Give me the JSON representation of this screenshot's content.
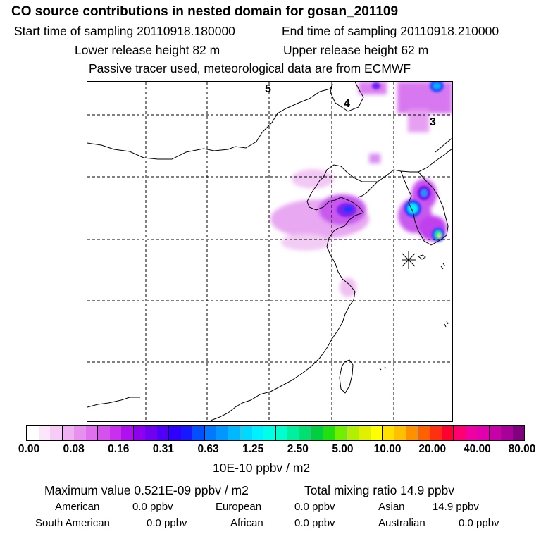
{
  "header": {
    "title": "CO  source contributions in nested domain for gosan_201109",
    "start_label": "Start time of sampling 20110918.180000",
    "end_label": "End time of sampling 20110918.210000",
    "lower_label": "Lower release height   82 m",
    "upper_label": "Upper release height   62 m",
    "note": "Passive tracer used, meteorological data are from ECMWF"
  },
  "map": {
    "region_labels": [
      "5",
      "4",
      "3"
    ],
    "receptor_marker": "gosan receptor star"
  },
  "colorbar": {
    "ticks": [
      "0.00",
      "0.08",
      "0.16",
      "0.31",
      "0.63",
      "1.25",
      "2.50",
      "5.00",
      "10.00",
      "20.00",
      "40.00",
      "80.00"
    ],
    "unit": "10E-10 ppbv / m2",
    "colors": [
      "#ffffff",
      "#fbe6fb",
      "#f6ccf6",
      "#f0b0f2",
      "#e890f0",
      "#e070ee",
      "#d650ee",
      "#c830ee",
      "#b010f0",
      "#9000f0",
      "#7000f0",
      "#5000f8",
      "#3000ff",
      "#1818ff",
      "#0050ff",
      "#0078ff",
      "#0098ff",
      "#00b8ff",
      "#00d8ff",
      "#00f0ff",
      "#00ffe8",
      "#00ffcc",
      "#00f0a0",
      "#00e070",
      "#00d040",
      "#20e010",
      "#70f000",
      "#b0f000",
      "#e0f000",
      "#ffff00",
      "#ffe000",
      "#ffc000",
      "#ff9000",
      "#ff6000",
      "#ff3010",
      "#ff0030",
      "#ff0070",
      "#f000a0",
      "#e000b0",
      "#c800a8",
      "#a80098",
      "#800080"
    ]
  },
  "summary": {
    "max_label": "Maximum value  0.521E-09 ppbv / m2",
    "total_label": "Total mixing ratio      14.9 ppbv",
    "american_label": "American",
    "american_value": "0.0 ppbv",
    "european_label": "European",
    "european_value": "0.0 ppbv",
    "asian_label": "Asian",
    "asian_value": "14.9 ppbv",
    "south_american_label": "South American",
    "south_american_value": "0.0 ppbv",
    "african_label": "African",
    "african_value": "0.0 ppbv",
    "australian_label": "Australian",
    "australian_value": "0.0 ppbv"
  }
}
